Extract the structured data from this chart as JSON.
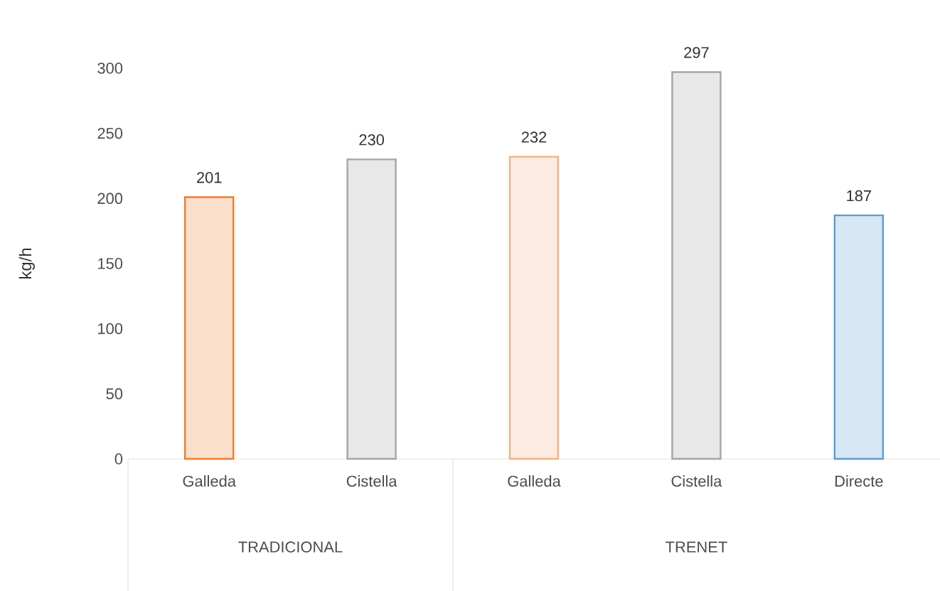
{
  "chart_data": {
    "type": "bar",
    "ylabel": "kg/h",
    "categories": [
      "Galleda",
      "Cistella",
      "Galleda",
      "Cistella",
      "Directe"
    ],
    "values": [
      201,
      230,
      232,
      297,
      187
    ],
    "colors": [
      "#ed7d31",
      "#a5a5a5",
      "#f4b183",
      "#a5a5a5",
      "#5b9bd5"
    ],
    "ylim": [
      0,
      300
    ],
    "yticks": [
      0,
      50,
      100,
      150,
      200,
      250,
      300
    ],
    "data_labels": true,
    "grid": false,
    "annotations": [
      "TRADICIONAL",
      "TRENET"
    ]
  }
}
